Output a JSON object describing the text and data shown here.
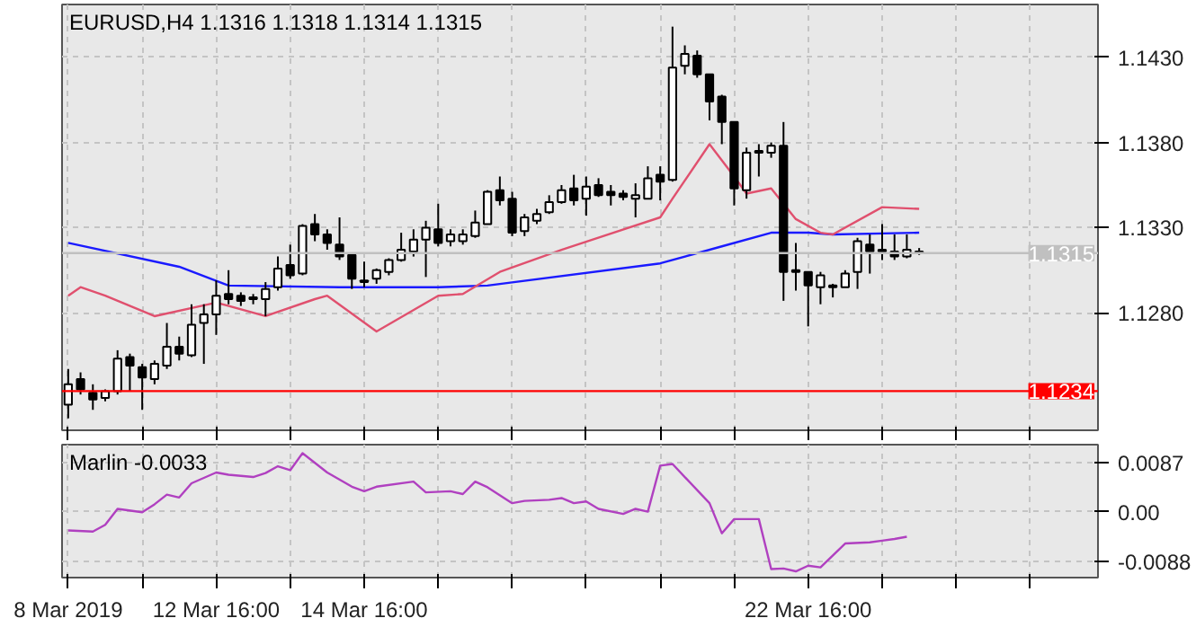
{
  "chart_data": [
    {
      "type": "candlestick",
      "title": "EURUSD,H4  1.1316 1.1318 1.1314 1.1315",
      "categories": [
        null,
        null,
        null,
        null,
        null,
        null,
        null,
        null,
        null,
        null,
        null,
        null,
        null,
        null,
        null,
        null,
        null,
        null,
        null,
        null,
        null,
        null,
        null,
        null,
        null,
        null,
        null,
        null,
        null,
        null,
        null,
        null,
        null,
        null,
        null,
        null,
        null,
        null,
        null,
        null,
        null,
        null,
        null,
        null,
        null,
        null,
        null,
        null,
        null,
        null,
        null,
        null,
        null,
        null,
        null,
        null,
        null,
        null,
        null,
        null,
        null,
        null,
        null,
        null,
        null,
        null,
        null,
        null,
        null,
        null,
        null,
        null,
        null,
        null,
        null,
        null,
        null,
        null,
        null,
        null,
        null,
        null,
        null,
        null
      ],
      "ohlc": [
        [
          1.1226,
          1.1247,
          1.1218,
          1.1238
        ],
        [
          1.1241,
          1.1245,
          1.1232,
          1.1235
        ],
        [
          1.1233,
          1.1238,
          1.1223,
          1.1229
        ],
        [
          1.123,
          1.1235,
          1.1228,
          1.1234
        ],
        [
          1.1234,
          1.1258,
          1.1232,
          1.1253
        ],
        [
          1.1254,
          1.1256,
          1.1234,
          1.1249
        ],
        [
          1.1248,
          1.125,
          1.1223,
          1.1242
        ],
        [
          1.1241,
          1.1252,
          1.1238,
          1.125
        ],
        [
          1.1249,
          1.1274,
          1.1247,
          1.126
        ],
        [
          1.126,
          1.1266,
          1.1252,
          1.1256
        ],
        [
          1.1255,
          1.1285,
          1.1254,
          1.1273
        ],
        [
          1.1274,
          1.1285,
          1.125,
          1.1279
        ],
        [
          1.1279,
          1.1299,
          1.1267,
          1.129
        ],
        [
          1.1291,
          1.1305,
          1.1285,
          1.1288
        ],
        [
          1.129,
          1.1292,
          1.1284,
          1.1287
        ],
        [
          1.1289,
          1.1291,
          1.1285,
          1.1288
        ],
        [
          1.1288,
          1.1298,
          1.1278,
          1.1294
        ],
        [
          1.1295,
          1.1313,
          1.1293,
          1.1306
        ],
        [
          1.1308,
          1.132,
          1.13,
          1.1302
        ],
        [
          1.1303,
          1.1332,
          1.1302,
          1.1331
        ],
        [
          1.1332,
          1.1338,
          1.1322,
          1.1326
        ],
        [
          1.1326,
          1.1329,
          1.1317,
          1.1321
        ],
        [
          1.132,
          1.1336,
          1.1311,
          1.1313
        ],
        [
          1.1314,
          1.1314,
          1.1294,
          1.13
        ],
        [
          1.1299,
          1.131,
          1.1295,
          1.1298
        ],
        [
          1.13,
          1.1306,
          1.1297,
          1.1305
        ],
        [
          1.1304,
          1.1312,
          1.1302,
          1.1311
        ],
        [
          1.1311,
          1.1327,
          1.131,
          1.1317
        ],
        [
          1.1316,
          1.1329,
          1.1313,
          1.1323
        ],
        [
          1.1323,
          1.1334,
          1.1301,
          1.133
        ],
        [
          1.1329,
          1.1344,
          1.1319,
          1.1321
        ],
        [
          1.1322,
          1.1329,
          1.1319,
          1.1326
        ],
        [
          1.1322,
          1.1329,
          1.132,
          1.1326
        ],
        [
          1.1325,
          1.134,
          1.1324,
          1.1333
        ],
        [
          1.1332,
          1.1352,
          1.1332,
          1.1351
        ],
        [
          1.1352,
          1.136,
          1.1343,
          1.1346
        ],
        [
          1.1347,
          1.1351,
          1.1325,
          1.1327
        ],
        [
          1.1328,
          1.1338,
          1.1325,
          1.1336
        ],
        [
          1.1334,
          1.1341,
          1.1332,
          1.1338
        ],
        [
          1.1339,
          1.1349,
          1.1338,
          1.1345
        ],
        [
          1.1345,
          1.1355,
          1.1344,
          1.1352
        ],
        [
          1.1353,
          1.1361,
          1.1343,
          1.1346
        ],
        [
          1.1347,
          1.136,
          1.1337,
          1.1354
        ],
        [
          1.1355,
          1.1359,
          1.1348,
          1.1349
        ],
        [
          1.1351,
          1.1355,
          1.1343,
          1.1349
        ],
        [
          1.135,
          1.1352,
          1.1346,
          1.1348
        ],
        [
          1.1347,
          1.1356,
          1.1336,
          1.1349
        ],
        [
          1.1347,
          1.1366,
          1.1347,
          1.1359
        ],
        [
          1.1361,
          1.1366,
          1.1346,
          1.1357
        ],
        [
          1.1358,
          1.1448,
          1.1357,
          1.1424
        ],
        [
          1.1425,
          1.1437,
          1.142,
          1.1432
        ],
        [
          1.1431,
          1.1434,
          1.1418,
          1.142
        ],
        [
          1.142,
          1.142,
          1.1393,
          1.1404
        ],
        [
          1.1407,
          1.1408,
          1.1379,
          1.1392
        ],
        [
          1.1392,
          1.1392,
          1.1343,
          1.1353
        ],
        [
          1.1352,
          1.1377,
          1.1347,
          1.1374
        ],
        [
          1.1374,
          1.1379,
          1.136,
          1.1375
        ],
        [
          1.1374,
          1.138,
          1.1371,
          1.1378
        ],
        [
          1.1378,
          1.1392,
          1.1287,
          1.1304
        ],
        [
          1.1305,
          1.1321,
          1.1293,
          1.1304
        ],
        [
          1.1304,
          1.1304,
          1.1272,
          1.1296
        ],
        [
          1.1295,
          1.1304,
          1.1285,
          1.1302
        ],
        [
          1.1296,
          1.1297,
          1.1289,
          1.1295
        ],
        [
          1.1295,
          1.1305,
          1.1295,
          1.1303
        ],
        [
          1.1304,
          1.1324,
          1.1294,
          1.1322
        ],
        [
          1.132,
          1.1326,
          1.1303,
          1.1316
        ],
        [
          1.1317,
          1.1332,
          1.1311,
          1.1316
        ],
        [
          1.1316,
          1.1326,
          1.1311,
          1.1313
        ],
        [
          1.1313,
          1.1326,
          1.1312,
          1.1317
        ],
        [
          1.1316,
          1.1318,
          1.1314,
          1.1315
        ],
        null,
        null,
        null,
        null,
        null,
        null,
        null,
        null,
        null,
        null,
        null,
        null,
        null,
        null
      ],
      "series": [
        {
          "type": "line",
          "color": "#1a1aff",
          "values": [
            1.1321,
            null,
            null,
            null,
            null,
            null,
            null,
            null,
            null,
            1.1307,
            null,
            null,
            null,
            1.1296,
            null,
            null,
            null,
            null,
            null,
            null,
            null,
            null,
            1.1295,
            null,
            null,
            null,
            null,
            null,
            null,
            null,
            1.1295,
            null,
            null,
            null,
            1.1296,
            null,
            null,
            null,
            null,
            null,
            null,
            null,
            null,
            null,
            null,
            null,
            null,
            null,
            1.1309,
            null,
            null,
            null,
            null,
            1.1319,
            null,
            null,
            null,
            1.1327,
            null,
            null,
            1.1327,
            null,
            1.1326,
            null,
            null,
            null,
            null,
            null,
            null,
            1.1327,
            null,
            null,
            null,
            null,
            null,
            null,
            null,
            null,
            null,
            null,
            null,
            null,
            null,
            null
          ]
        },
        {
          "type": "line",
          "color": "#e0506e",
          "values": [
            1.129,
            1.1295,
            null,
            1.129,
            null,
            null,
            null,
            1.1278,
            null,
            null,
            null,
            null,
            1.1286,
            null,
            null,
            null,
            1.1278,
            null,
            null,
            null,
            1.1288,
            1.129,
            null,
            null,
            null,
            1.1269,
            null,
            null,
            null,
            null,
            1.129,
            null,
            1.1291,
            null,
            null,
            1.1304,
            null,
            null,
            null,
            null,
            1.1317,
            null,
            null,
            null,
            null,
            null,
            null,
            null,
            1.1336,
            1.1347,
            null,
            null,
            1.1379,
            null,
            1.136,
            1.135,
            null,
            1.1353,
            null,
            1.1335,
            null,
            1.1327,
            1.1326,
            null,
            null,
            null,
            1.1342,
            null,
            null,
            1.1341,
            null,
            null,
            null,
            null,
            null,
            null,
            null,
            null,
            null,
            null,
            null,
            null,
            null,
            null
          ]
        }
      ],
      "ylim": [
        1.1211,
        1.1461
      ],
      "yticks": [
        {
          "value": 1.128,
          "label": "1.1280"
        },
        {
          "value": 1.133,
          "label": "1.1330"
        },
        {
          "value": 1.138,
          "label": "1.1380"
        },
        {
          "value": 1.143,
          "label": "1.1430"
        }
      ],
      "grid": true,
      "ref_lines": [
        {
          "axis": "y",
          "value": 1.1234,
          "label": "1.1234",
          "color": "#ff0000"
        },
        {
          "axis": "y",
          "value": 1.1315,
          "label": "1.1315",
          "color": "#c0c0c0"
        }
      ]
    },
    {
      "type": "line",
      "title": "Marlin -0.0033",
      "categories": [
        "8 Mar 2019",
        null,
        null,
        null,
        null,
        null,
        null,
        null,
        null,
        null,
        null,
        null,
        "12 Mar 16:00",
        null,
        null,
        null,
        null,
        null,
        null,
        null,
        null,
        null,
        null,
        null,
        "14 Mar 16:00",
        null,
        null,
        null,
        null,
        null,
        null,
        null,
        null,
        null,
        null,
        null,
        null,
        null,
        null,
        null,
        null,
        null,
        null,
        null,
        null,
        null,
        null,
        null,
        null,
        null,
        null,
        null,
        null,
        null,
        null,
        null,
        null,
        null,
        null,
        null,
        "22 Mar 16:00",
        null,
        null,
        null,
        null,
        null,
        null,
        null,
        null,
        null,
        null,
        null,
        null,
        null,
        null,
        null,
        null,
        null,
        null,
        null,
        null,
        null,
        null,
        null
      ],
      "series": [
        {
          "color": "#b040c0",
          "values": [
            -0.0033,
            null,
            -0.0035,
            -0.0023,
            0.0005,
            null,
            -0.0001,
            0.0013,
            0.003,
            0.0025,
            0.005,
            null,
            0.0069,
            0.0065,
            null,
            0.0061,
            0.0068,
            0.008,
            0.0073,
            0.0103,
            0.0086,
            0.0069,
            null,
            0.0044,
            0.0036,
            0.0044,
            null,
            null,
            0.0053,
            0.0034,
            null,
            0.0036,
            0.0031,
            0.0053,
            0.0043,
            null,
            0.0015,
            0.0019,
            null,
            0.0021,
            0.0024,
            0.0015,
            0.0018,
            0.0005,
            null,
            -0.0004,
            0.0005,
            0.0,
            0.0081,
            0.0084,
            null,
            null,
            0.0015,
            -0.0038,
            -0.0013,
            null,
            -0.0013,
            -0.0101,
            -0.01,
            -0.0105,
            -0.0095,
            -0.0098,
            null,
            -0.0056,
            null,
            -0.0054,
            -0.0051,
            -0.0048,
            -0.0044,
            null,
            null,
            null,
            null,
            null,
            null,
            null,
            null,
            null,
            null,
            null,
            null,
            null,
            null,
            null
          ]
        }
      ],
      "ylim": [
        -0.0116,
        0.0118
      ],
      "yticks": [
        {
          "value": 0.0087,
          "label": "0.0087"
        },
        {
          "value": 0,
          "label": "0.00"
        },
        {
          "value": -0.0088,
          "label": "-0.0088"
        }
      ],
      "grid": true
    }
  ]
}
